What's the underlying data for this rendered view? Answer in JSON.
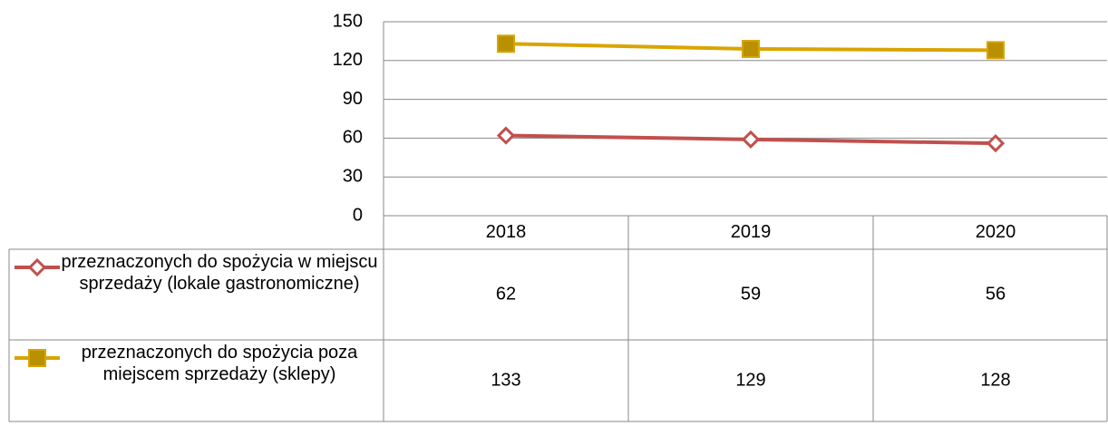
{
  "chart_data": {
    "type": "line",
    "categories": [
      "2018",
      "2019",
      "2020"
    ],
    "series": [
      {
        "name": "przeznaczonych do spożycia w miejscu sprzedaży (lokale gastronomiczne)",
        "color": "#c0504d",
        "marker": "diamond",
        "values": [
          62,
          59,
          56
        ]
      },
      {
        "name": "przeznaczonych do spożycia poza miejscem sprzedaży (sklepy)",
        "color": "#d9a400",
        "marker": "square",
        "values": [
          133,
          129,
          128
        ]
      }
    ],
    "ylim": [
      0,
      150
    ],
    "yticks": [
      0,
      30,
      60,
      90,
      120,
      150
    ],
    "grid": true,
    "data_table": true
  }
}
